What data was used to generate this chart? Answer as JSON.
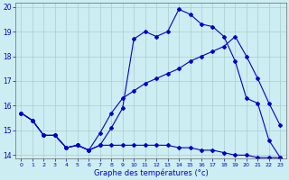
{
  "title": "Graphe des températures (°c)",
  "background_color": "#cceef2",
  "grid_color": "#aacccc",
  "line_color": "#0000cc",
  "ylim": [
    14,
    20
  ],
  "xlim": [
    -0.5,
    23.5
  ],
  "yticks": [
    14,
    15,
    16,
    17,
    18,
    19,
    20
  ],
  "xticks": [
    0,
    1,
    2,
    3,
    4,
    5,
    6,
    7,
    8,
    9,
    10,
    11,
    12,
    13,
    14,
    15,
    16,
    17,
    18,
    19,
    20,
    21,
    22,
    23
  ],
  "series1_x": [
    0,
    1,
    2,
    3,
    4,
    5,
    6,
    7,
    8,
    9,
    10,
    11,
    12,
    13,
    14,
    15,
    16,
    17,
    18,
    19,
    20,
    21,
    22,
    23
  ],
  "series1_y": [
    15.7,
    15.4,
    14.8,
    14.8,
    14.3,
    14.4,
    14.2,
    14.4,
    14.4,
    14.4,
    14.4,
    14.4,
    14.4,
    14.4,
    14.3,
    14.3,
    14.2,
    14.2,
    14.1,
    14.0,
    14.0,
    13.9,
    13.9,
    13.9
  ],
  "series2_x": [
    0,
    1,
    2,
    3,
    4,
    5,
    6,
    7,
    8,
    9,
    10,
    11,
    12,
    13,
    14,
    15,
    16,
    17,
    18,
    19,
    20,
    21,
    22,
    23
  ],
  "series2_y": [
    15.7,
    15.4,
    14.8,
    14.8,
    14.3,
    14.4,
    14.2,
    14.4,
    15.1,
    15.9,
    18.7,
    19.0,
    18.8,
    19.0,
    19.9,
    19.7,
    19.3,
    19.2,
    18.8,
    17.8,
    16.3,
    16.1,
    14.6,
    13.9
  ],
  "series3_x": [
    0,
    1,
    2,
    3,
    4,
    5,
    6,
    7,
    8,
    9,
    10,
    11,
    12,
    13,
    14,
    15,
    16,
    17,
    18,
    19,
    20,
    21,
    22,
    23
  ],
  "series3_y": [
    15.7,
    15.4,
    14.8,
    14.8,
    14.3,
    14.4,
    14.2,
    14.9,
    15.7,
    16.3,
    16.6,
    16.9,
    17.1,
    17.3,
    17.5,
    17.8,
    18.0,
    18.2,
    18.4,
    18.8,
    18.0,
    17.1,
    16.1,
    15.2
  ]
}
